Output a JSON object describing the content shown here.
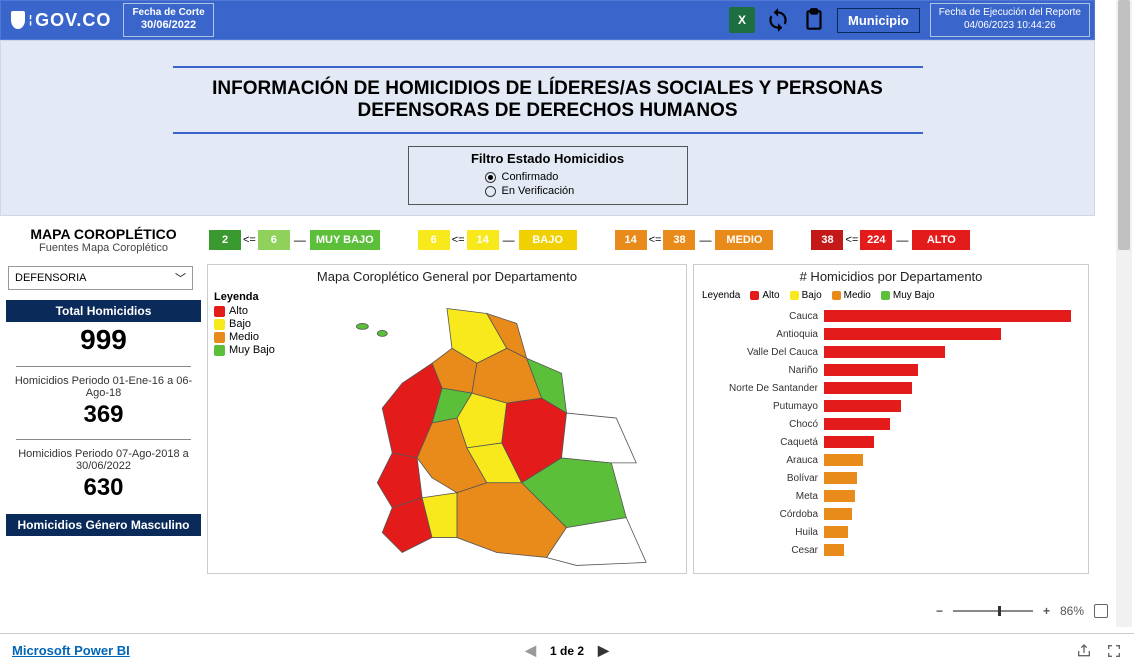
{
  "colors": {
    "blue": "#3a66cc",
    "dark_blue": "#0a2a5a",
    "panel_bg": "#e3eaf5",
    "alto": "#e31b1b",
    "medio": "#e88b1a",
    "bajo": "#f7e91c",
    "muybajo": "#5bbf3a",
    "muybajo_light": "#8fd15a"
  },
  "header": {
    "logo_text": "GOV.CO",
    "corte_label": "Fecha de Corte",
    "corte_value": "30/06/2022",
    "exec_label": "Fecha de Ejecución del Reporte",
    "exec_value": "04/06/2023 10:44:26",
    "municipio_btn": "Municipio"
  },
  "title": {
    "main": "INFORMACIÓN DE HOMICIDIOS DE LÍDERES/AS SOCIALES Y PERSONAS DEFENSORAS DE DERECHOS HUMANOS",
    "filter_title": "Filtro Estado Homicidios",
    "filter_options": [
      "Confirmado",
      "En Verificación"
    ],
    "filter_selected": 0
  },
  "legend_ranges": [
    {
      "low": "2",
      "high": "6",
      "label": "MUY BAJO",
      "color_low": "#3a9a2f",
      "color_high": "#8fd15a",
      "label_color": "#5bbf3a"
    },
    {
      "low": "6",
      "high": "14",
      "label": "BAJO",
      "color_low": "#f7e91c",
      "color_high": "#f7e91c",
      "label_color": "#f0d000"
    },
    {
      "low": "14",
      "high": "38",
      "label": "MEDIO",
      "color_low": "#e88b1a",
      "color_high": "#e88b1a",
      "label_color": "#e88b1a"
    },
    {
      "low": "38",
      "high": "224",
      "label": "ALTO",
      "color_low": "#c41919",
      "color_high": "#e31b1b",
      "label_color": "#e31b1b"
    }
  ],
  "left": {
    "map_label": "MAPA COROPLÉTICO",
    "map_sub": "Fuentes Mapa Coroplético",
    "dropdown_value": "DEFENSORIA",
    "total_label": "Total Homicidios",
    "total_value": "999",
    "p1_label": "Homicidios Periodo 01-Ene-16 a 06-Ago-18",
    "p1_value": "369",
    "p2_label": "Homicidios Periodo 07-Ago-2018 a 30/06/2022",
    "p2_value": "630",
    "genero_label": "Homicidios Género Masculino"
  },
  "map_panel": {
    "title": "Mapa Coroplético General por Departamento",
    "legend_title": "Leyenda",
    "legend": [
      {
        "label": "Alto",
        "color": "#e31b1b"
      },
      {
        "label": "Bajo",
        "color": "#f7e91c"
      },
      {
        "label": "Medio",
        "color": "#e88b1a"
      },
      {
        "label": "Muy Bajo",
        "color": "#5bbf3a"
      }
    ]
  },
  "bar_panel": {
    "title": "# Homicidios por Departamento",
    "legend_label": "Leyenda",
    "legend": [
      {
        "label": "Alto",
        "color": "#e31b1b"
      },
      {
        "label": "Bajo",
        "color": "#f7e91c"
      },
      {
        "label": "Medio",
        "color": "#e88b1a"
      },
      {
        "label": "Muy Bajo",
        "color": "#5bbf3a"
      }
    ],
    "max": 230,
    "bars": [
      {
        "label": "Cauca",
        "value": 224,
        "color": "#e31b1b"
      },
      {
        "label": "Antioquia",
        "value": 160,
        "color": "#e31b1b"
      },
      {
        "label": "Valle Del Cauca",
        "value": 110,
        "color": "#e31b1b"
      },
      {
        "label": "Nariño",
        "value": 85,
        "color": "#e31b1b"
      },
      {
        "label": "Norte De Santander",
        "value": 80,
        "color": "#e31b1b"
      },
      {
        "label": "Putumayo",
        "value": 70,
        "color": "#e31b1b"
      },
      {
        "label": "Chocó",
        "value": 60,
        "color": "#e31b1b"
      },
      {
        "label": "Caquetá",
        "value": 45,
        "color": "#e31b1b"
      },
      {
        "label": "Arauca",
        "value": 35,
        "color": "#e88b1a"
      },
      {
        "label": "Bolívar",
        "value": 30,
        "color": "#e88b1a"
      },
      {
        "label": "Meta",
        "value": 28,
        "color": "#e88b1a"
      },
      {
        "label": "Córdoba",
        "value": 25,
        "color": "#e88b1a"
      },
      {
        "label": "Huila",
        "value": 22,
        "color": "#e88b1a"
      },
      {
        "label": "Cesar",
        "value": 18,
        "color": "#e88b1a"
      }
    ]
  },
  "footer": {
    "zoom_pct": "86%",
    "powerbi": "Microsoft Power BI",
    "page_text": "1 de 2"
  }
}
